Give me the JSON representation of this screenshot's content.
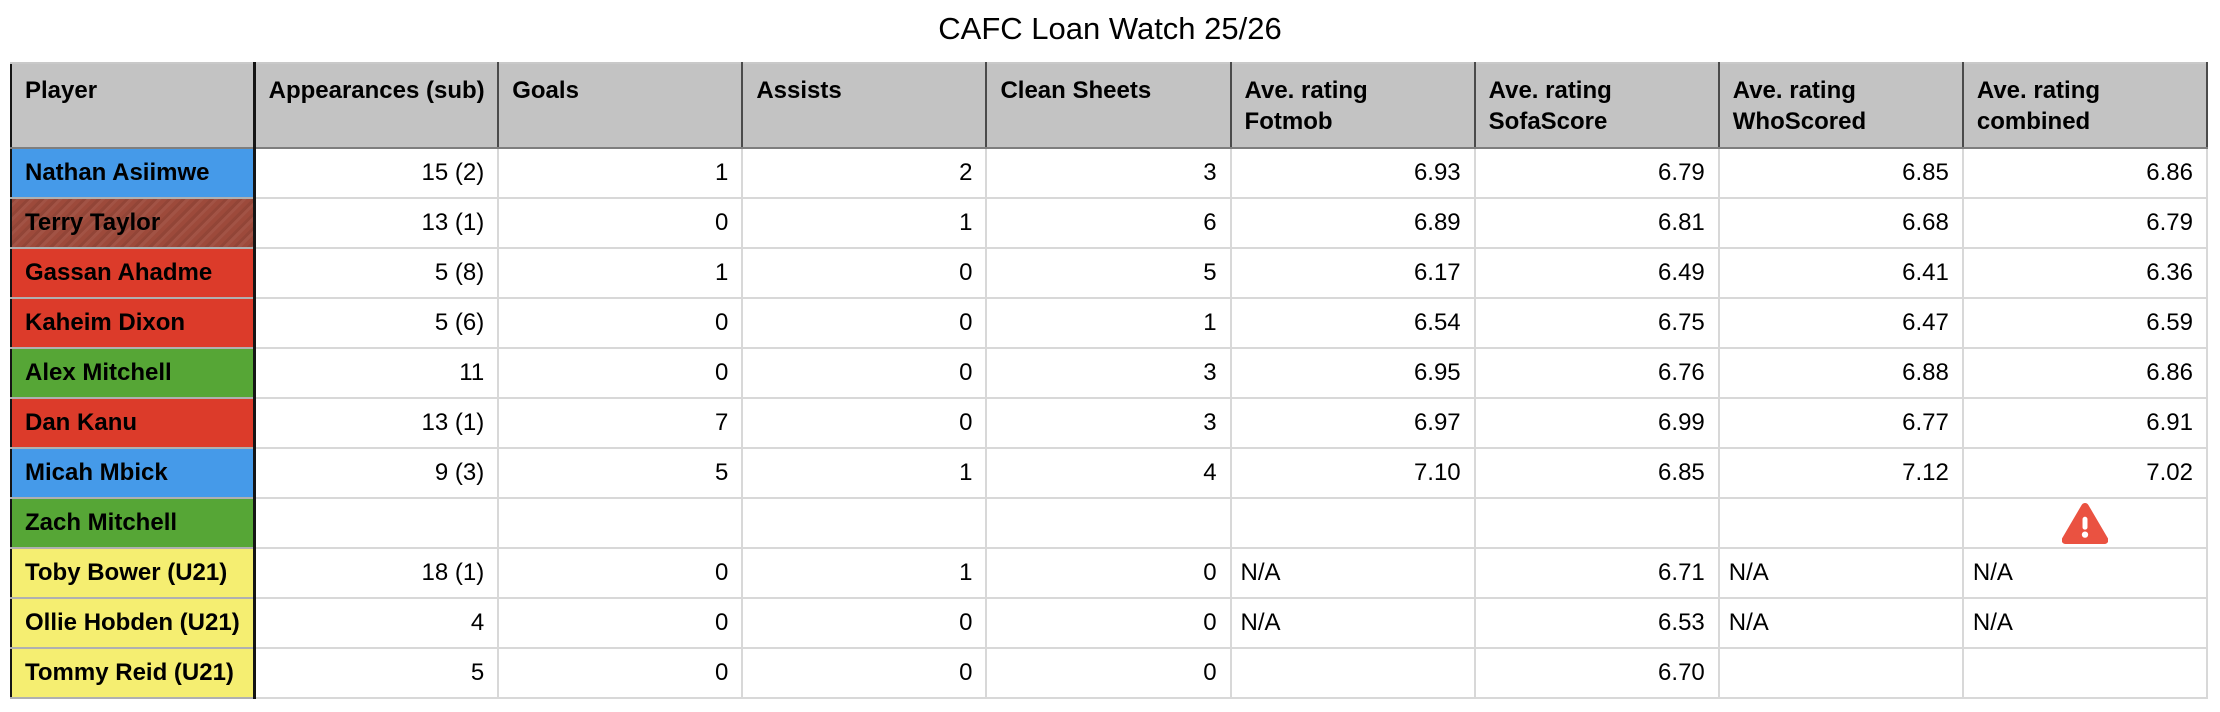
{
  "title": "CAFC Loan Watch 25/26",
  "colors": {
    "header_bg": "#c3c3c3",
    "blue": "#459ae9",
    "brick": "#9d4a3b",
    "red": "#dc3b2a",
    "green": "#56a636",
    "yellow": "#f5ee71",
    "grid_line": "#d8d8d8",
    "warning": "#ea5241"
  },
  "table": {
    "columns": [
      {
        "label": "Player"
      },
      {
        "label": "Appearances (sub)"
      },
      {
        "label": "Goals"
      },
      {
        "label": "Assists"
      },
      {
        "label": "Clean Sheets"
      },
      {
        "label": "Ave. rating\nFotmob"
      },
      {
        "label": "Ave. rating\nSofaScore"
      },
      {
        "label": "Ave. rating\nWhoScored"
      },
      {
        "label": "Ave. rating\ncombined"
      }
    ],
    "rows": [
      {
        "color": "blue",
        "warning": false,
        "values": [
          "Nathan Asiimwe",
          "15 (2)",
          "1",
          "2",
          "3",
          "6.93",
          "6.79",
          "6.85",
          "6.86"
        ]
      },
      {
        "color": "brick",
        "warning": false,
        "values": [
          "Terry Taylor",
          "13 (1)",
          "0",
          "1",
          "6",
          "6.89",
          "6.81",
          "6.68",
          "6.79"
        ]
      },
      {
        "color": "red",
        "warning": false,
        "values": [
          "Gassan Ahadme",
          "5 (8)",
          "1",
          "0",
          "5",
          "6.17",
          "6.49",
          "6.41",
          "6.36"
        ]
      },
      {
        "color": "red",
        "warning": false,
        "values": [
          "Kaheim Dixon",
          "5 (6)",
          "0",
          "0",
          "1",
          "6.54",
          "6.75",
          "6.47",
          "6.59"
        ]
      },
      {
        "color": "green",
        "warning": false,
        "values": [
          "Alex Mitchell",
          "11",
          "0",
          "0",
          "3",
          "6.95",
          "6.76",
          "6.88",
          "6.86"
        ]
      },
      {
        "color": "red",
        "warning": false,
        "values": [
          "Dan Kanu",
          "13 (1)",
          "7",
          "0",
          "3",
          "6.97",
          "6.99",
          "6.77",
          "6.91"
        ]
      },
      {
        "color": "blue",
        "warning": false,
        "values": [
          "Micah Mbick",
          "9 (3)",
          "5",
          "1",
          "4",
          "7.10",
          "6.85",
          "7.12",
          "7.02"
        ]
      },
      {
        "color": "green",
        "warning": true,
        "values": [
          "Zach Mitchell",
          "",
          "",
          "",
          "",
          "",
          "",
          "",
          ""
        ]
      },
      {
        "color": "yellow",
        "warning": false,
        "values": [
          "Toby Bower (U21)",
          "18 (1)",
          "0",
          "1",
          "0",
          "N/A",
          "6.71",
          "N/A",
          "N/A"
        ]
      },
      {
        "color": "yellow",
        "warning": false,
        "values": [
          "Ollie Hobden (U21)",
          "4",
          "0",
          "0",
          "0",
          "N/A",
          "6.53",
          "N/A",
          "N/A"
        ]
      },
      {
        "color": "yellow",
        "warning": false,
        "values": [
          "Tommy Reid (U21)",
          "5",
          "0",
          "0",
          "0",
          "",
          "6.70",
          "",
          ""
        ]
      }
    ]
  }
}
